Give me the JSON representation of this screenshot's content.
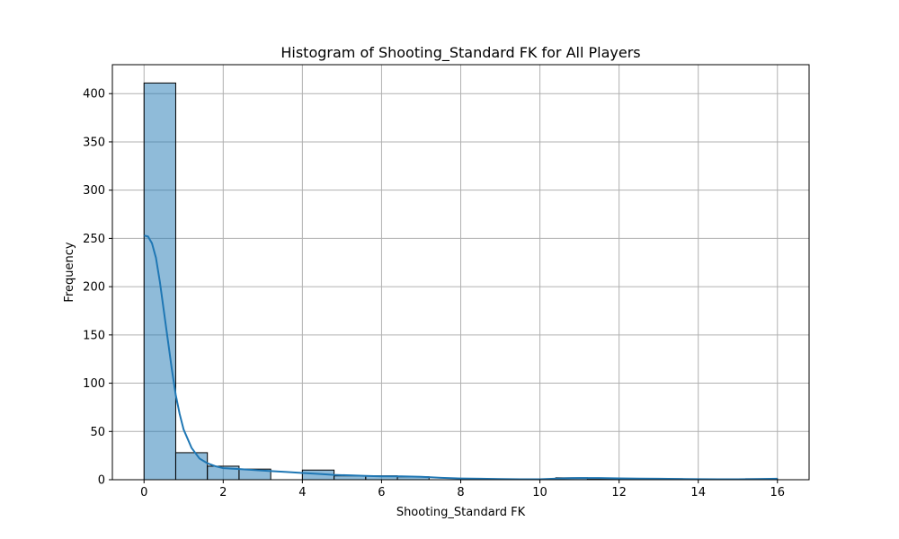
{
  "chart_data": {
    "type": "bar",
    "title": "Histogram of Shooting_Standard FK for All Players",
    "xlabel": "Shooting_Standard FK",
    "ylabel": "Frequency",
    "xlim": [
      -0.8,
      16.8
    ],
    "ylim": [
      0,
      430
    ],
    "xticks": [
      0,
      2,
      4,
      6,
      8,
      10,
      12,
      14,
      16
    ],
    "yticks": [
      0,
      50,
      100,
      150,
      200,
      250,
      300,
      350,
      400
    ],
    "grid": true,
    "bins": [
      {
        "x0": 0.0,
        "x1": 0.8,
        "count": 411
      },
      {
        "x0": 0.8,
        "x1": 1.6,
        "count": 28
      },
      {
        "x0": 1.6,
        "x1": 2.4,
        "count": 14
      },
      {
        "x0": 2.4,
        "x1": 3.2,
        "count": 11
      },
      {
        "x0": 3.2,
        "x1": 4.0,
        "count": 0
      },
      {
        "x0": 4.0,
        "x1": 4.8,
        "count": 10
      },
      {
        "x0": 4.8,
        "x1": 5.6,
        "count": 4
      },
      {
        "x0": 5.6,
        "x1": 6.4,
        "count": 4
      },
      {
        "x0": 6.4,
        "x1": 7.2,
        "count": 3
      },
      {
        "x0": 7.2,
        "x1": 8.0,
        "count": 0
      },
      {
        "x0": 8.0,
        "x1": 8.8,
        "count": 0
      },
      {
        "x0": 8.8,
        "x1": 9.6,
        "count": 0
      },
      {
        "x0": 9.6,
        "x1": 10.4,
        "count": 0
      },
      {
        "x0": 10.4,
        "x1": 11.2,
        "count": 2
      },
      {
        "x0": 11.2,
        "x1": 12.0,
        "count": 1
      },
      {
        "x0": 12.0,
        "x1": 12.8,
        "count": 1
      },
      {
        "x0": 12.8,
        "x1": 13.6,
        "count": 1
      },
      {
        "x0": 13.6,
        "x1": 14.4,
        "count": 0
      },
      {
        "x0": 14.4,
        "x1": 15.2,
        "count": 0
      },
      {
        "x0": 15.2,
        "x1": 16.0,
        "count": 1
      }
    ],
    "kde": {
      "color": "#1f77b4",
      "points": [
        [
          0.0,
          253
        ],
        [
          0.1,
          252
        ],
        [
          0.2,
          245
        ],
        [
          0.3,
          230
        ],
        [
          0.4,
          205
        ],
        [
          0.5,
          175
        ],
        [
          0.6,
          145
        ],
        [
          0.7,
          115
        ],
        [
          0.8,
          88
        ],
        [
          0.9,
          68
        ],
        [
          1.0,
          52
        ],
        [
          1.2,
          33
        ],
        [
          1.4,
          22
        ],
        [
          1.6,
          17
        ],
        [
          1.8,
          14
        ],
        [
          2.0,
          12
        ],
        [
          2.4,
          11
        ],
        [
          2.8,
          10
        ],
        [
          3.2,
          9
        ],
        [
          3.6,
          8
        ],
        [
          4.0,
          7
        ],
        [
          4.4,
          6
        ],
        [
          4.8,
          5
        ],
        [
          5.2,
          4.5
        ],
        [
          5.6,
          4
        ],
        [
          6.0,
          3.5
        ],
        [
          6.5,
          3.5
        ],
        [
          7.0,
          3
        ],
        [
          7.5,
          2
        ],
        [
          8.0,
          1.3
        ],
        [
          8.5,
          1
        ],
        [
          9.0,
          0.7
        ],
        [
          9.5,
          0.5
        ],
        [
          10.0,
          0.5
        ],
        [
          10.5,
          1.3
        ],
        [
          11.0,
          1.8
        ],
        [
          11.5,
          1.7
        ],
        [
          12.0,
          1.4
        ],
        [
          12.5,
          1.2
        ],
        [
          13.0,
          1
        ],
        [
          13.5,
          0.8
        ],
        [
          14.0,
          0.6
        ],
        [
          14.5,
          0.5
        ],
        [
          15.0,
          0.5
        ],
        [
          15.5,
          0.7
        ],
        [
          16.0,
          1
        ]
      ]
    },
    "bar_color": "#1f77b4"
  }
}
